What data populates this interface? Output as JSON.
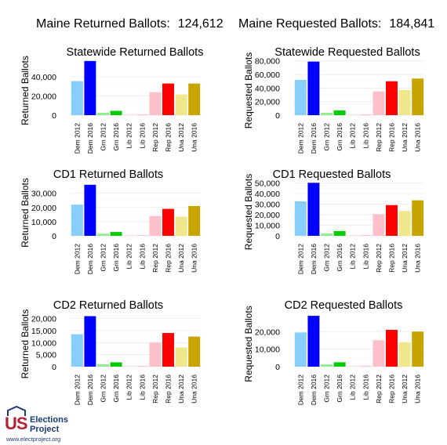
{
  "header": {
    "returned_label": "Maine Returned Ballots:",
    "returned_value": "124,612",
    "requested_label": "Maine Requested Ballots:",
    "requested_value": "184,841"
  },
  "logo": {
    "line1": "US",
    "line2": "Elections",
    "line3": "Project",
    "url": "www.electproject.org"
  },
  "chart_data": [
    {
      "id": "statewide-returned",
      "type": "bar",
      "title": "Statewide Returned Ballots",
      "ylabel": "Returned Ballots",
      "categories": [
        "Dem 2012",
        "Dem 2016",
        "Grn 2012",
        "Grn 2016",
        "Lib 2012",
        "Lib 2016",
        "Rep 2012",
        "Rep 2016",
        "Una 2012",
        "Una 2016"
      ],
      "values": [
        35500,
        56500,
        2500,
        4500,
        0,
        800,
        24000,
        33000,
        21500,
        33000
      ],
      "ylim": [
        0,
        58000
      ],
      "yticks": [
        0,
        20000,
        40000
      ],
      "yticklabels": [
        "0",
        "20,000",
        "40,000"
      ]
    },
    {
      "id": "statewide-requested",
      "type": "bar",
      "title": "Statewide Requested Ballots",
      "ylabel": "Requested Ballots",
      "categories": [
        "Dem 2012",
        "Dem 2016",
        "Grn 2012",
        "Grn 2016",
        "Lib 2012",
        "Lib 2016",
        "Rep 2012",
        "Rep 2016",
        "Una 2012",
        "Una 2016"
      ],
      "values": [
        52000,
        79000,
        3500,
        7000,
        0,
        1200,
        35000,
        50000,
        37000,
        54000
      ],
      "ylim": [
        0,
        82000
      ],
      "yticks": [
        0,
        20000,
        40000,
        60000,
        80000
      ],
      "yticklabels": [
        "0",
        "20,000",
        "40,000",
        "60,000",
        "80,000"
      ]
    },
    {
      "id": "cd1-returned",
      "type": "bar",
      "title": "CD1 Returned Ballots",
      "ylabel": "Returned Ballots",
      "categories": [
        "Dem 2012",
        "Dem 2016",
        "Grn 2012",
        "Grn 2016",
        "Lib 2012",
        "Lib 2016",
        "Rep 2012",
        "Rep 2016",
        "Una 2012",
        "Una 2016"
      ],
      "values": [
        22000,
        36000,
        1500,
        2700,
        0,
        500,
        14000,
        19000,
        13500,
        21000
      ],
      "ylim": [
        0,
        37000
      ],
      "yticks": [
        0,
        10000,
        20000,
        30000
      ],
      "yticklabels": [
        "0",
        "10,000",
        "20,000",
        "30,000"
      ]
    },
    {
      "id": "cd1-requested",
      "type": "bar",
      "title": "CD1 Requested Ballots",
      "ylabel": "Requested Ballots",
      "categories": [
        "Dem 2012",
        "Dem 2016",
        "Grn 2012",
        "Grn 2016",
        "Lib 2012",
        "Lib 2016",
        "Rep 2012",
        "Rep 2016",
        "Una 2012",
        "Una 2016"
      ],
      "values": [
        32500,
        50000,
        2200,
        4500,
        0,
        700,
        20500,
        29000,
        23500,
        33500
      ],
      "ylim": [
        0,
        51000
      ],
      "yticks": [
        0,
        10000,
        20000,
        30000,
        40000,
        50000
      ],
      "yticklabels": [
        "0",
        "10,000",
        "20,000",
        "30,000",
        "40,000",
        "50,000"
      ]
    },
    {
      "id": "cd2-returned",
      "type": "bar",
      "title": "CD2 Returned Ballots",
      "ylabel": "Returned Ballots",
      "categories": [
        "Dem 2012",
        "Dem 2016",
        "Grn 2012",
        "Grn 2016",
        "Lib 2012",
        "Lib 2016",
        "Rep 2012",
        "Rep 2016",
        "Una 2012",
        "Una 2016"
      ],
      "values": [
        13500,
        21000,
        1000,
        1800,
        0,
        300,
        10000,
        14000,
        8000,
        12500
      ],
      "ylim": [
        0,
        21500
      ],
      "yticks": [
        0,
        5000,
        10000,
        15000,
        20000
      ],
      "yticklabels": [
        "0",
        "5,000",
        "10,000",
        "15,000",
        "20,000"
      ]
    },
    {
      "id": "cd2-requested",
      "type": "bar",
      "title": "CD2 Requested Ballots",
      "ylabel": "Requested Ballots",
      "categories": [
        "Dem 2012",
        "Dem 2016",
        "Grn 2012",
        "Grn 2016",
        "Lib 2012",
        "Lib 2016",
        "Rep 2012",
        "Rep 2016",
        "Una 2012",
        "Una 2016"
      ],
      "values": [
        19500,
        29000,
        1300,
        2500,
        0,
        500,
        15000,
        21000,
        14000,
        20000
      ],
      "ylim": [
        0,
        29500
      ],
      "yticks": [
        0,
        10000,
        20000
      ],
      "yticklabels": [
        "0",
        "10,000",
        "20,000"
      ]
    }
  ],
  "colors": {
    "Dem 2012": "#87cefa",
    "Dem 2016": "#0000ff",
    "Grn 2012": "#90ee90",
    "Grn 2016": "#00cc00",
    "Lib 2012": "#ffd8e8",
    "Lib 2016": "#ffc0cb",
    "Rep 2012": "#ffc0cb",
    "Rep 2016": "#ff0000",
    "Una 2012": "#f0e68c",
    "Una 2016": "#c8a400"
  }
}
